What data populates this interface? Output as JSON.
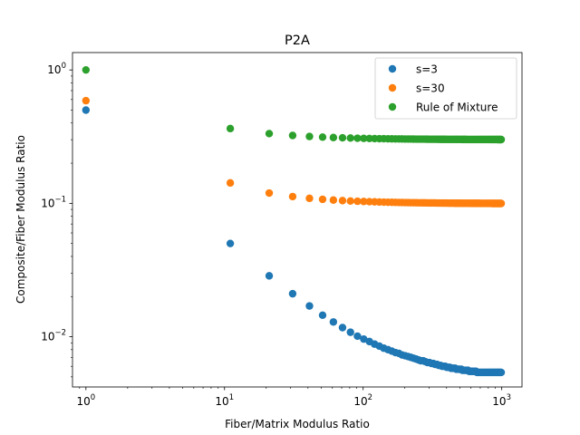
{
  "chart_data": {
    "type": "scatter",
    "title": "P2A",
    "xlabel": "Fiber/Matrix Modulus Ratio",
    "ylabel": "Composite/Fiber Modulus Ratio",
    "xscale": "log",
    "yscale": "log",
    "xlim": [
      0.8,
      1400
    ],
    "ylim": [
      0.0042,
      1.35
    ],
    "grid": false,
    "legend_position": "top-right",
    "x_ticks": [
      {
        "value": 1,
        "exp": "0"
      },
      {
        "value": 10,
        "exp": "1"
      },
      {
        "value": 100,
        "exp": "2"
      },
      {
        "value": 1000,
        "exp": "3"
      }
    ],
    "y_ticks": [
      {
        "value": 0.01,
        "exp": "−2"
      },
      {
        "value": 0.1,
        "exp": "−1"
      },
      {
        "value": 1,
        "exp": "0"
      }
    ],
    "tick_base": "10",
    "x": [
      1,
      11,
      21,
      31,
      41,
      51,
      61,
      71,
      81,
      91,
      101,
      111,
      121,
      131,
      141,
      151,
      161,
      171,
      181,
      191,
      201,
      211,
      221,
      231,
      241,
      251,
      261,
      271,
      281,
      291,
      301,
      311,
      321,
      331,
      341,
      351,
      361,
      371,
      381,
      391,
      401,
      411,
      421,
      431,
      441,
      451,
      461,
      471,
      481,
      491,
      501,
      511,
      521,
      531,
      541,
      551,
      561,
      571,
      581,
      591,
      601,
      611,
      621,
      631,
      641,
      651,
      661,
      671,
      681,
      691,
      701,
      711,
      721,
      731,
      741,
      751,
      761,
      771,
      781,
      791,
      801,
      811,
      821,
      831,
      841,
      851,
      861,
      871,
      881,
      891,
      901,
      911,
      921,
      931,
      941,
      951,
      961,
      971,
      981,
      991
    ],
    "series": [
      {
        "name": "s=3",
        "color": "#1f77b4",
        "values": [
          0.5,
          0.05,
          0.0286,
          0.021,
          0.017,
          0.0145,
          0.0129,
          0.0117,
          0.0108,
          0.0101,
          0.0096,
          0.0092,
          0.0088,
          0.0085,
          0.0082,
          0.008,
          0.0078,
          0.0076,
          0.0075,
          0.0073,
          0.0072,
          0.0071,
          0.007,
          0.0069,
          0.0068,
          0.0067,
          0.0066,
          0.0066,
          0.0065,
          0.0064,
          0.0064,
          0.0063,
          0.0063,
          0.0062,
          0.0062,
          0.0061,
          0.0061,
          0.006,
          0.006,
          0.006,
          0.0059,
          0.0059,
          0.0059,
          0.0058,
          0.0058,
          0.0058,
          0.0058,
          0.0057,
          0.0057,
          0.0057,
          0.0057,
          0.0057,
          0.0056,
          0.0056,
          0.0056,
          0.0056,
          0.0056,
          0.0056,
          0.0055,
          0.0055,
          0.0055,
          0.0055,
          0.0055,
          0.0055,
          0.0055,
          0.0055,
          0.0054,
          0.0054,
          0.0054,
          0.0054,
          0.0054,
          0.0054,
          0.0054,
          0.0054,
          0.0054,
          0.0054,
          0.0054,
          0.0054,
          0.0054,
          0.0054,
          0.0054,
          0.0054,
          0.0054,
          0.0054,
          0.0054,
          0.0054,
          0.0054,
          0.0054,
          0.0054,
          0.0054,
          0.0054,
          0.0054,
          0.0054,
          0.0054,
          0.0054,
          0.0054,
          0.0054,
          0.0054,
          0.0054,
          0.0054
        ]
      },
      {
        "name": "s=30",
        "color": "#ff7f0e",
        "values": [
          0.5882,
          0.1422,
          0.1194,
          0.1124,
          0.109,
          0.1071,
          0.1058,
          0.1048,
          0.1041,
          0.1036,
          0.1032,
          0.1029,
          0.1026,
          0.1023,
          0.1021,
          0.1019,
          0.1018,
          0.1016,
          0.1015,
          0.1014,
          0.1013,
          0.1012,
          0.1011,
          0.1011,
          0.101,
          0.1009,
          0.1009,
          0.1008,
          0.1008,
          0.1007,
          0.1007,
          0.1006,
          0.1006,
          0.1006,
          0.1005,
          0.1005,
          0.1005,
          0.1004,
          0.1004,
          0.1004,
          0.1004,
          0.1003,
          0.1003,
          0.1003,
          0.1003,
          0.1003,
          0.1002,
          0.1002,
          0.1002,
          0.1002,
          0.1002,
          0.1002,
          0.1001,
          0.1001,
          0.1001,
          0.1001,
          0.1001,
          0.1001,
          0.1001,
          0.1001,
          0.1,
          0.1,
          0.1,
          0.1,
          0.1,
          0.1,
          0.1,
          0.1,
          0.1,
          0.1,
          0.0999,
          0.0999,
          0.0999,
          0.0999,
          0.0999,
          0.0999,
          0.0999,
          0.0999,
          0.0999,
          0.0999,
          0.0999,
          0.0999,
          0.0999,
          0.0999,
          0.0999,
          0.0998,
          0.0998,
          0.0998,
          0.0998,
          0.0998,
          0.0998,
          0.0998,
          0.0998,
          0.0998,
          0.0998,
          0.0998,
          0.0998,
          0.0998,
          0.0998,
          0.0998
        ]
      },
      {
        "name": "Rule of Mixture",
        "color": "#2ca02c",
        "values": [
          1.0,
          0.3636,
          0.3333,
          0.3226,
          0.3171,
          0.3137,
          0.3115,
          0.3099,
          0.3086,
          0.3077,
          0.3069,
          0.3063,
          0.3058,
          0.3053,
          0.305,
          0.3046,
          0.3043,
          0.3041,
          0.3039,
          0.3037,
          0.3035,
          0.3033,
          0.3032,
          0.303,
          0.3029,
          0.3028,
          0.3027,
          0.3026,
          0.3025,
          0.3024,
          0.3023,
          0.3023,
          0.3022,
          0.3021,
          0.3021,
          0.302,
          0.3019,
          0.3019,
          0.3018,
          0.3018,
          0.3017,
          0.3017,
          0.3017,
          0.3016,
          0.3016,
          0.3016,
          0.3015,
          0.3015,
          0.3015,
          0.3014,
          0.3014,
          0.3014,
          0.3013,
          0.3013,
          0.3013,
          0.3013,
          0.3012,
          0.3012,
          0.3012,
          0.3012,
          0.3012,
          0.3011,
          0.3011,
          0.3011,
          0.3011,
          0.3011,
          0.3011,
          0.301,
          0.301,
          0.301,
          0.301,
          0.301,
          0.301,
          0.301,
          0.3009,
          0.3009,
          0.3009,
          0.3009,
          0.3009,
          0.3009,
          0.3009,
          0.3009,
          0.3009,
          0.3008,
          0.3008,
          0.3008,
          0.3008,
          0.3008,
          0.3008,
          0.3008,
          0.3008,
          0.3008,
          0.3008,
          0.3008,
          0.3007,
          0.3007,
          0.3007,
          0.3007,
          0.3007,
          0.3007
        ]
      }
    ]
  }
}
